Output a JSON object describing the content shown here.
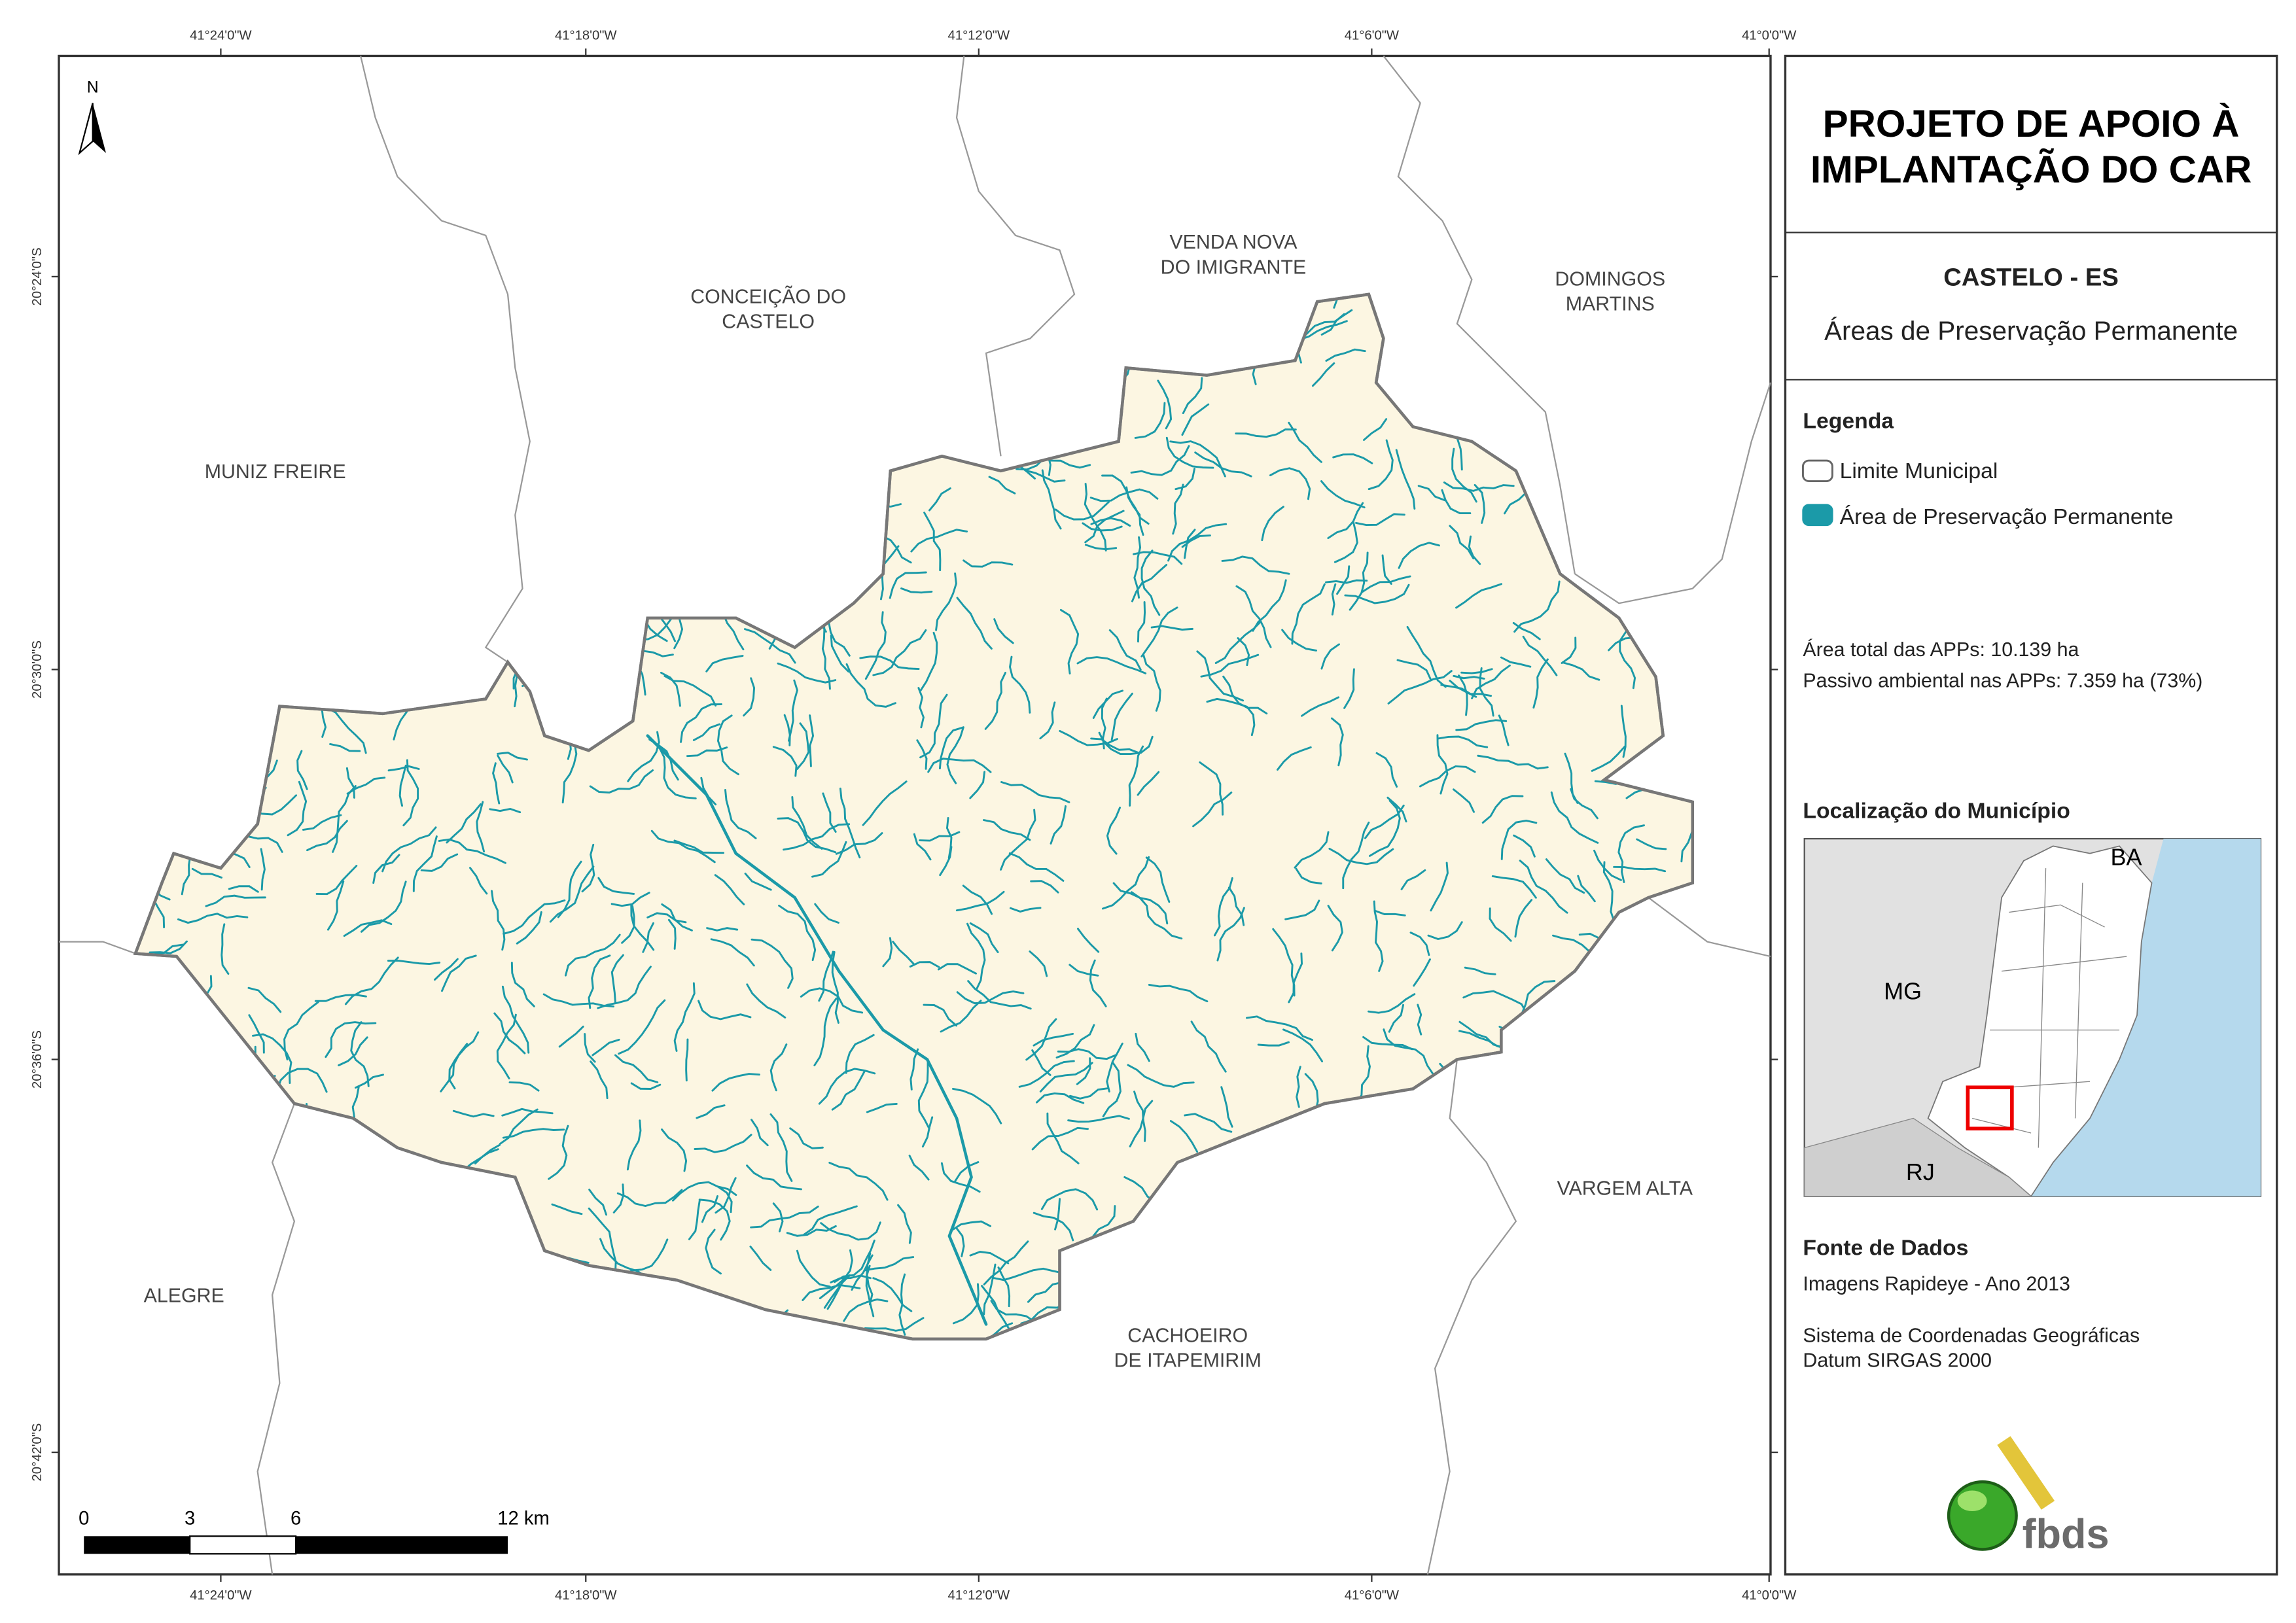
{
  "map": {
    "north": "N",
    "lon_labels": [
      "41°24'0\"W",
      "41°18'0\"W",
      "41°12'0\"W",
      "41°6'0\"W",
      "41°0'0\"W"
    ],
    "lat_labels": [
      "20°24'0\"S",
      "20°30'0\"S",
      "20°36'0\"S",
      "20°42'0\"S"
    ],
    "places": [
      [
        "MUNIZ FREIRE"
      ],
      [
        "CONCEIÇÃO DO",
        "CASTELO"
      ],
      [
        "VENDA NOVA",
        "DO IMIGRANTE"
      ],
      [
        "DOMINGOS",
        "MARTINS"
      ],
      [
        "VARGEM ALTA"
      ],
      [
        "ALEGRE"
      ],
      [
        "CACHOEIRO",
        "DE ITAPEMIRIM"
      ]
    ],
    "scale_bar": [
      "0",
      "3",
      "6",
      "12 km"
    ],
    "inset_labels": [
      "BA",
      "MG",
      "RJ"
    ]
  },
  "panel": {
    "title": [
      "PROJETO DE APOIO À",
      "IMPLANTAÇÃO DO CAR"
    ],
    "subtitle": "CASTELO - ES",
    "theme": "Áreas de Preservação Permanente",
    "legend": {
      "title": "Legenda",
      "items": [
        "Limite Municipal",
        "Área de Preservação Permanente"
      ]
    },
    "stats": [
      "Área total das APPs: 10.139 ha",
      "Passivo ambiental nas APPs: 7.359 ha (73%)"
    ],
    "location_title": "Localização do Município",
    "sources": {
      "title": "Fonte de Dados",
      "lines": [
        "Imagens Rapideye - Ano 2013",
        "Sistema de Coordenadas Geográficas",
        "Datum SIRGAS 2000"
      ]
    },
    "logo": "fbds"
  }
}
